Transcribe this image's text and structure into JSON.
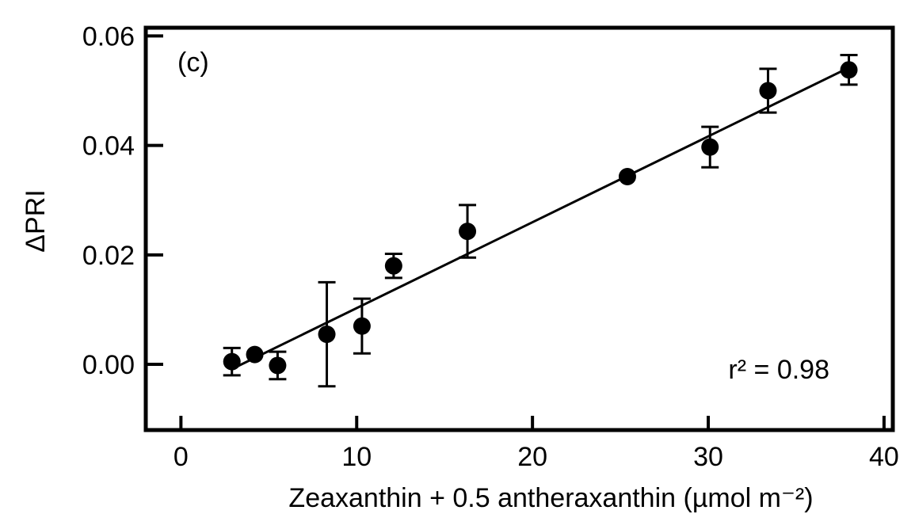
{
  "chart_data": {
    "type": "scatter",
    "panel_label": "(c)",
    "xlabel": "Zeaxanthin + 0.5 antheraxanthin (µmol m⁻²)",
    "ylabel": "ΔPRI",
    "annotation": "r² = 0.98",
    "xlim": [
      -2,
      40.5
    ],
    "ylim": [
      -0.012,
      0.0615
    ],
    "x_ticks": [
      0,
      10,
      20,
      30,
      40
    ],
    "x_tick_labels": [
      "0",
      "10",
      "20",
      "30",
      "40"
    ],
    "y_ticks": [
      0.0,
      0.02,
      0.04,
      0.06
    ],
    "y_tick_labels": [
      "0.00",
      "0.02",
      "0.04",
      "0.06"
    ],
    "grid": false,
    "points": [
      {
        "x": 2.9,
        "y": 0.0005,
        "err": 0.0025
      },
      {
        "x": 4.2,
        "y": 0.0018,
        "err": 0.0
      },
      {
        "x": 5.5,
        "y": -0.0002,
        "err": 0.0025
      },
      {
        "x": 8.3,
        "y": 0.0055,
        "err": 0.0095
      },
      {
        "x": 10.3,
        "y": 0.007,
        "err": 0.005
      },
      {
        "x": 12.1,
        "y": 0.018,
        "err": 0.0022
      },
      {
        "x": 16.3,
        "y": 0.0243,
        "err": 0.0048
      },
      {
        "x": 25.4,
        "y": 0.0343,
        "err": 0.0
      },
      {
        "x": 30.1,
        "y": 0.0397,
        "err": 0.0037
      },
      {
        "x": 33.4,
        "y": 0.05,
        "err": 0.004
      },
      {
        "x": 38.0,
        "y": 0.0538,
        "err": 0.0027
      }
    ],
    "fit_line": {
      "x": [
        3.0,
        38.0
      ],
      "y": [
        -0.0007,
        0.0542
      ]
    }
  }
}
